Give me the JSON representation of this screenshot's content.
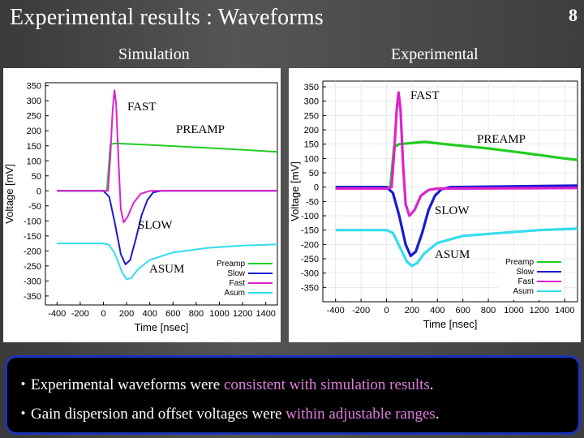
{
  "slide": {
    "title": "Experimental results : Waveforms",
    "page_number": "8",
    "simulation_label": "Simulation",
    "experimental_label": "Experimental"
  },
  "notes": [
    {
      "prefix": "・Experimental waveforms were ",
      "highlight": "consistent with simulation results",
      "suffix": "."
    },
    {
      "prefix": "・Gain dispersion and offset voltages were ",
      "highlight": "within adjustable ranges",
      "suffix": "."
    }
  ],
  "colors": {
    "preamp": "#22cc22",
    "slow": "#1a1ad0",
    "fast": "#dd22cc",
    "asum": "#33ddee",
    "highlight": "#e07fe0",
    "note_border": "#1d33b8"
  },
  "chart_data": [
    {
      "type": "line",
      "title": "Simulation",
      "xlabel": "Time [nsec]",
      "ylabel": "Voltage [mV]",
      "xlim": [
        -500,
        1500
      ],
      "ylim": [
        -380,
        360
      ],
      "xticks": [
        -400,
        -200,
        0,
        200,
        400,
        600,
        800,
        1000,
        1200,
        1400
      ],
      "yticks": [
        350,
        300,
        250,
        200,
        150,
        100,
        50,
        0,
        -50,
        -100,
        -150,
        -200,
        -250,
        -300,
        -350
      ],
      "legend": [
        "Preamp",
        "Slow",
        "Fast",
        "Asum"
      ],
      "legend_position": "bottom-right",
      "annotations": [
        "FAST",
        "PREAMP",
        "SLOW",
        "ASUM"
      ],
      "series": [
        {
          "name": "Preamp",
          "color": "#22cc22",
          "points": [
            [
              -400,
              0
            ],
            [
              0,
              0
            ],
            [
              30,
              0
            ],
            [
              60,
              155
            ],
            [
              100,
              158
            ],
            [
              400,
              153
            ],
            [
              800,
              145
            ],
            [
              1200,
              137
            ],
            [
              1500,
              130
            ]
          ]
        },
        {
          "name": "Slow",
          "color": "#1a1ad0",
          "points": [
            [
              -400,
              0
            ],
            [
              0,
              0
            ],
            [
              50,
              -20
            ],
            [
              100,
              -110
            ],
            [
              150,
              -210
            ],
            [
              190,
              -245
            ],
            [
              230,
              -230
            ],
            [
              280,
              -160
            ],
            [
              330,
              -80
            ],
            [
              380,
              -30
            ],
            [
              430,
              -5
            ],
            [
              500,
              0
            ],
            [
              1500,
              0
            ]
          ]
        },
        {
          "name": "Fast",
          "color": "#dd22cc",
          "points": [
            [
              -400,
              0
            ],
            [
              0,
              0
            ],
            [
              40,
              0
            ],
            [
              60,
              120
            ],
            [
              80,
              270
            ],
            [
              95,
              335
            ],
            [
              110,
              290
            ],
            [
              130,
              100
            ],
            [
              150,
              -60
            ],
            [
              175,
              -105
            ],
            [
              210,
              -85
            ],
            [
              260,
              -40
            ],
            [
              320,
              -10
            ],
            [
              400,
              0
            ],
            [
              1500,
              0
            ]
          ]
        },
        {
          "name": "Asum",
          "color": "#33ddee",
          "points": [
            [
              -400,
              -175
            ],
            [
              0,
              -175
            ],
            [
              50,
              -180
            ],
            [
              100,
              -210
            ],
            [
              160,
              -270
            ],
            [
              200,
              -295
            ],
            [
              240,
              -290
            ],
            [
              300,
              -260
            ],
            [
              400,
              -230
            ],
            [
              600,
              -205
            ],
            [
              900,
              -190
            ],
            [
              1200,
              -182
            ],
            [
              1500,
              -178
            ]
          ]
        }
      ]
    },
    {
      "type": "line",
      "title": "Experimental",
      "xlabel": "Time [nsec]",
      "ylabel": "Voltage [mV]",
      "xlim": [
        -500,
        1500
      ],
      "ylim": [
        -400,
        370
      ],
      "xticks": [
        -400,
        -200,
        0,
        200,
        400,
        600,
        800,
        1000,
        1200,
        1400
      ],
      "yticks": [
        350,
        300,
        250,
        200,
        150,
        100,
        50,
        0,
        -50,
        -100,
        -150,
        -200,
        -250,
        -300,
        -350
      ],
      "legend": [
        "Preamp",
        "Slow",
        "Fast",
        "Asum"
      ],
      "legend_position": "bottom-right",
      "annotations": [
        "FAST",
        "PREAMP",
        "SLOW",
        "ASUM"
      ],
      "series": [
        {
          "name": "Preamp",
          "color": "#22cc22",
          "points": [
            [
              -400,
              0
            ],
            [
              0,
              0
            ],
            [
              30,
              0
            ],
            [
              60,
              140
            ],
            [
              100,
              150
            ],
            [
              300,
              158
            ],
            [
              500,
              148
            ],
            [
              800,
              135
            ],
            [
              1100,
              118
            ],
            [
              1400,
              100
            ],
            [
              1500,
              95
            ]
          ]
        },
        {
          "name": "Slow",
          "color": "#1a1ad0",
          "points": [
            [
              -400,
              0
            ],
            [
              0,
              0
            ],
            [
              50,
              -20
            ],
            [
              100,
              -100
            ],
            [
              150,
              -200
            ],
            [
              190,
              -240
            ],
            [
              230,
              -225
            ],
            [
              280,
              -160
            ],
            [
              330,
              -80
            ],
            [
              380,
              -30
            ],
            [
              430,
              -8
            ],
            [
              500,
              0
            ],
            [
              1500,
              5
            ]
          ]
        },
        {
          "name": "Fast",
          "color": "#dd22cc",
          "points": [
            [
              -400,
              -5
            ],
            [
              0,
              -5
            ],
            [
              40,
              0
            ],
            [
              60,
              120
            ],
            [
              80,
              270
            ],
            [
              95,
              330
            ],
            [
              110,
              270
            ],
            [
              130,
              80
            ],
            [
              150,
              -60
            ],
            [
              180,
              -100
            ],
            [
              220,
              -80
            ],
            [
              270,
              -30
            ],
            [
              330,
              -10
            ],
            [
              400,
              -5
            ],
            [
              1500,
              -3
            ]
          ]
        },
        {
          "name": "Asum",
          "color": "#33ddee",
          "points": [
            [
              -400,
              -150
            ],
            [
              0,
              -150
            ],
            [
              50,
              -160
            ],
            [
              100,
              -205
            ],
            [
              160,
              -260
            ],
            [
              200,
              -275
            ],
            [
              240,
              -265
            ],
            [
              300,
              -230
            ],
            [
              400,
              -195
            ],
            [
              600,
              -170
            ],
            [
              900,
              -160
            ],
            [
              1200,
              -150
            ],
            [
              1500,
              -145
            ]
          ]
        }
      ]
    }
  ]
}
